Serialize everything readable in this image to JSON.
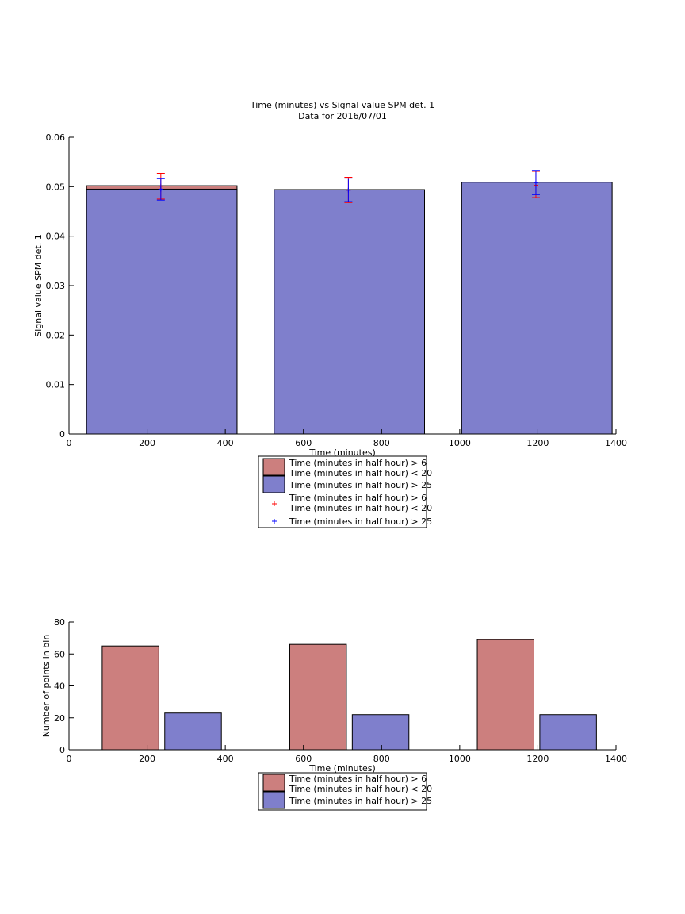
{
  "figure": {
    "title_line1": "Time (minutes) vs Signal value SPM det. 1",
    "title_line2": "Data for 2016/07/01"
  },
  "colors": {
    "red_fill": "#cc7f7e",
    "blue_fill": "#7f7fcc",
    "red_marker": "#ff0000",
    "blue_marker": "#0000ff",
    "axis": "#000000"
  },
  "chart_data": [
    {
      "type": "bar",
      "subtype": "overlaid bars with error bars",
      "title": "Time (minutes) vs Signal value SPM det. 1\nData for 2016/07/01",
      "xlabel": "Time (minutes)",
      "ylabel": "Signal value SPM det. 1",
      "xlim": [
        0,
        1400
      ],
      "ylim": [
        0,
        0.06
      ],
      "xticks": [
        0,
        200,
        400,
        600,
        800,
        1000,
        1200,
        1400
      ],
      "xtick_labels": [
        "0",
        "200",
        "400",
        "600",
        "800",
        "1000",
        "1200",
        "1400"
      ],
      "yticks": [
        0,
        0.01,
        0.02,
        0.03,
        0.04,
        0.05,
        0.06
      ],
      "ytick_labels": [
        "0",
        "0.01",
        "0.02",
        "0.03",
        "0.04",
        "0.05",
        "0.06"
      ],
      "bin_edges": [
        [
          45,
          430
        ],
        [
          525,
          910
        ],
        [
          1005,
          1390
        ]
      ],
      "series": [
        {
          "name": "Time (minutes in half hour) > 6\nTime (minutes in half hour) < 20",
          "color": "#cc7f7e",
          "bar_values": [
            0.0502,
            0.0494,
            0.0509
          ],
          "marker_x": [
            235,
            715,
            1195
          ],
          "error_center": [
            0.0501,
            0.0493,
            0.0503
          ],
          "error_low": [
            0.0475,
            0.0468,
            0.0478
          ],
          "error_high": [
            0.0527,
            0.0519,
            0.0531
          ]
        },
        {
          "name": "Time (minutes in half hour) > 25",
          "color": "#7f7fcc",
          "bar_values": [
            0.0495,
            0.0494,
            0.0509
          ],
          "marker_x": [
            235,
            715,
            1195
          ],
          "error_center": [
            0.0495,
            0.0493,
            0.0508
          ],
          "error_low": [
            0.0473,
            0.047,
            0.0484
          ],
          "error_high": [
            0.0517,
            0.0516,
            0.0533
          ]
        }
      ],
      "legend": {
        "placement": "below plot",
        "entries": [
          {
            "kind": "patch",
            "color": "#cc7f7e",
            "lines": [
              "Time (minutes in half hour) > 6",
              "Time (minutes in half hour) < 20"
            ]
          },
          {
            "kind": "patch",
            "color": "#7f7fcc",
            "lines": [
              "Time (minutes in half hour) > 25"
            ]
          },
          {
            "kind": "marker",
            "color": "#ff0000",
            "lines": [
              "Time (minutes in half hour) > 6",
              "Time (minutes in half hour) < 20"
            ]
          },
          {
            "kind": "marker",
            "color": "#0000ff",
            "lines": [
              "Time (minutes in half hour) > 25"
            ]
          }
        ]
      }
    },
    {
      "type": "bar",
      "subtype": "grouped",
      "title": "",
      "xlabel": "Time (minutes)",
      "ylabel": "Number of points in bin",
      "xlim": [
        0,
        1400
      ],
      "ylim": [
        0,
        80
      ],
      "xticks": [
        0,
        200,
        400,
        600,
        800,
        1000,
        1200,
        1400
      ],
      "xtick_labels": [
        "0",
        "200",
        "400",
        "600",
        "800",
        "1000",
        "1200",
        "1400"
      ],
      "yticks": [
        0,
        20,
        40,
        60,
        80
      ],
      "ytick_labels": [
        "0",
        "20",
        "40",
        "60",
        "80"
      ],
      "series": [
        {
          "name": "Time (minutes in half hour) > 6\nTime (minutes in half hour) < 20",
          "color": "#cc7f7e",
          "bar_ranges": [
            [
              85,
              230
            ],
            [
              565,
              710
            ],
            [
              1045,
              1190
            ]
          ],
          "values": [
            65,
            66,
            69
          ]
        },
        {
          "name": "Time (minutes in half hour) > 25",
          "color": "#7f7fcc",
          "bar_ranges": [
            [
              245,
              390
            ],
            [
              725,
              870
            ],
            [
              1205,
              1350
            ]
          ],
          "values": [
            23,
            22,
            22
          ]
        }
      ],
      "legend": {
        "placement": "below plot",
        "entries": [
          {
            "kind": "patch",
            "color": "#cc7f7e",
            "lines": [
              "Time (minutes in half hour) > 6",
              "Time (minutes in half hour) < 20"
            ]
          },
          {
            "kind": "patch",
            "color": "#7f7fcc",
            "lines": [
              "Time (minutes in half hour) > 25"
            ]
          }
        ]
      }
    }
  ]
}
